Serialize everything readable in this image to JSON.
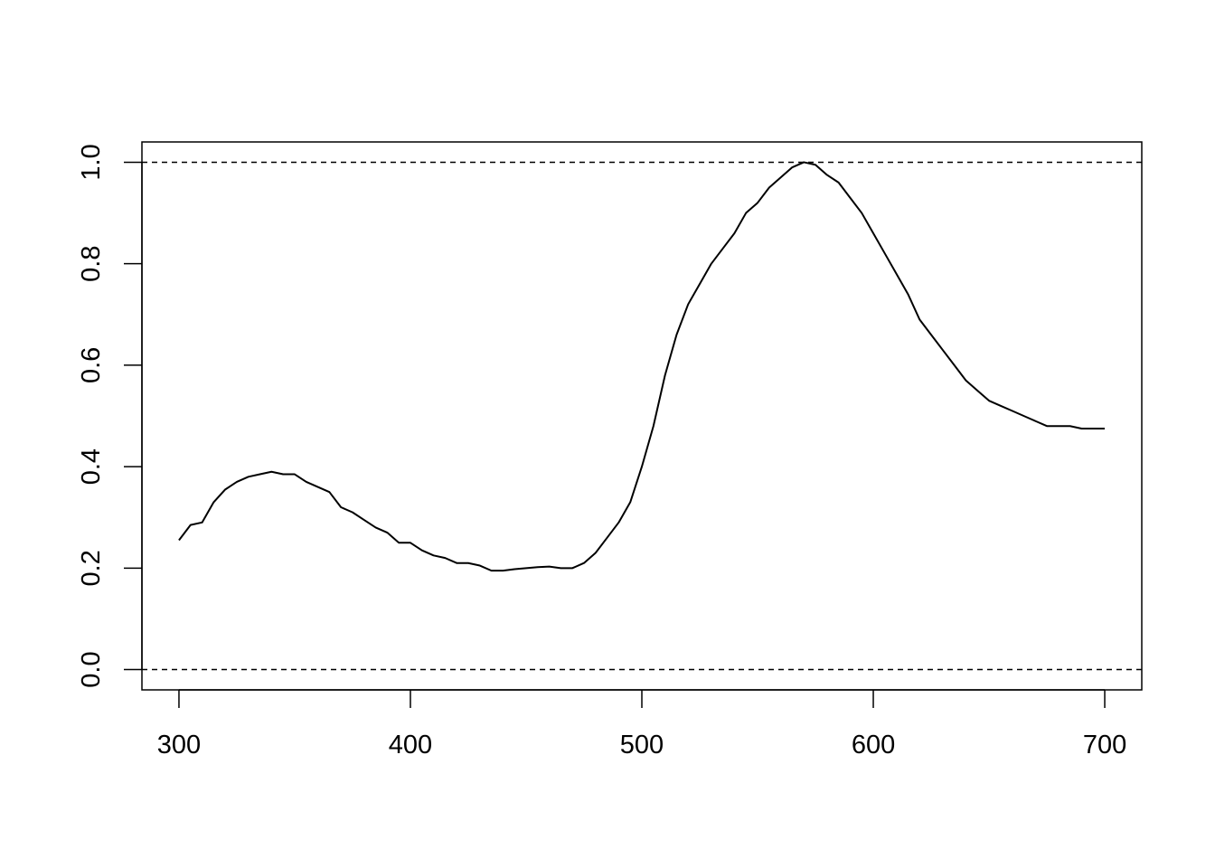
{
  "chart_data": {
    "type": "line",
    "x": [
      300,
      305,
      310,
      315,
      320,
      325,
      330,
      335,
      340,
      345,
      350,
      355,
      360,
      365,
      370,
      375,
      380,
      385,
      390,
      395,
      400,
      405,
      410,
      415,
      420,
      425,
      430,
      435,
      440,
      445,
      450,
      455,
      460,
      465,
      470,
      475,
      480,
      485,
      490,
      495,
      500,
      505,
      510,
      515,
      520,
      525,
      530,
      535,
      540,
      545,
      550,
      555,
      560,
      565,
      570,
      575,
      580,
      585,
      590,
      595,
      600,
      605,
      610,
      615,
      620,
      625,
      630,
      635,
      640,
      645,
      650,
      655,
      660,
      665,
      670,
      675,
      680,
      685,
      690,
      695,
      700
    ],
    "values": [
      0.255,
      0.285,
      0.29,
      0.33,
      0.355,
      0.37,
      0.38,
      0.385,
      0.39,
      0.385,
      0.385,
      0.37,
      0.36,
      0.35,
      0.32,
      0.31,
      0.295,
      0.28,
      0.27,
      0.25,
      0.25,
      0.235,
      0.225,
      0.22,
      0.21,
      0.21,
      0.205,
      0.195,
      0.195,
      0.198,
      0.2,
      0.202,
      0.203,
      0.2,
      0.2,
      0.21,
      0.23,
      0.26,
      0.29,
      0.33,
      0.4,
      0.48,
      0.58,
      0.66,
      0.72,
      0.76,
      0.8,
      0.83,
      0.86,
      0.9,
      0.92,
      0.95,
      0.97,
      0.99,
      1.0,
      0.995,
      0.975,
      0.96,
      0.93,
      0.9,
      0.86,
      0.82,
      0.78,
      0.74,
      0.69,
      0.66,
      0.63,
      0.6,
      0.57,
      0.55,
      0.53,
      0.52,
      0.51,
      0.5,
      0.49,
      0.48,
      0.48,
      0.48,
      0.475,
      0.475,
      0.475
    ],
    "color": "#000000",
    "xlim": [
      284,
      716
    ],
    "ylim": [
      -0.04,
      1.04
    ],
    "xticks": [
      300,
      400,
      500,
      600,
      700
    ],
    "yticks": [
      {
        "value": 0,
        "label": "0.0"
      },
      {
        "value": 0.2,
        "label": "0.2"
      },
      {
        "value": 0.4,
        "label": "0.4"
      },
      {
        "value": 0.6,
        "label": "0.6"
      },
      {
        "value": 0.8,
        "label": "0.8"
      },
      {
        "value": 1,
        "label": "1.0"
      }
    ],
    "hlines": [
      0,
      1
    ]
  }
}
